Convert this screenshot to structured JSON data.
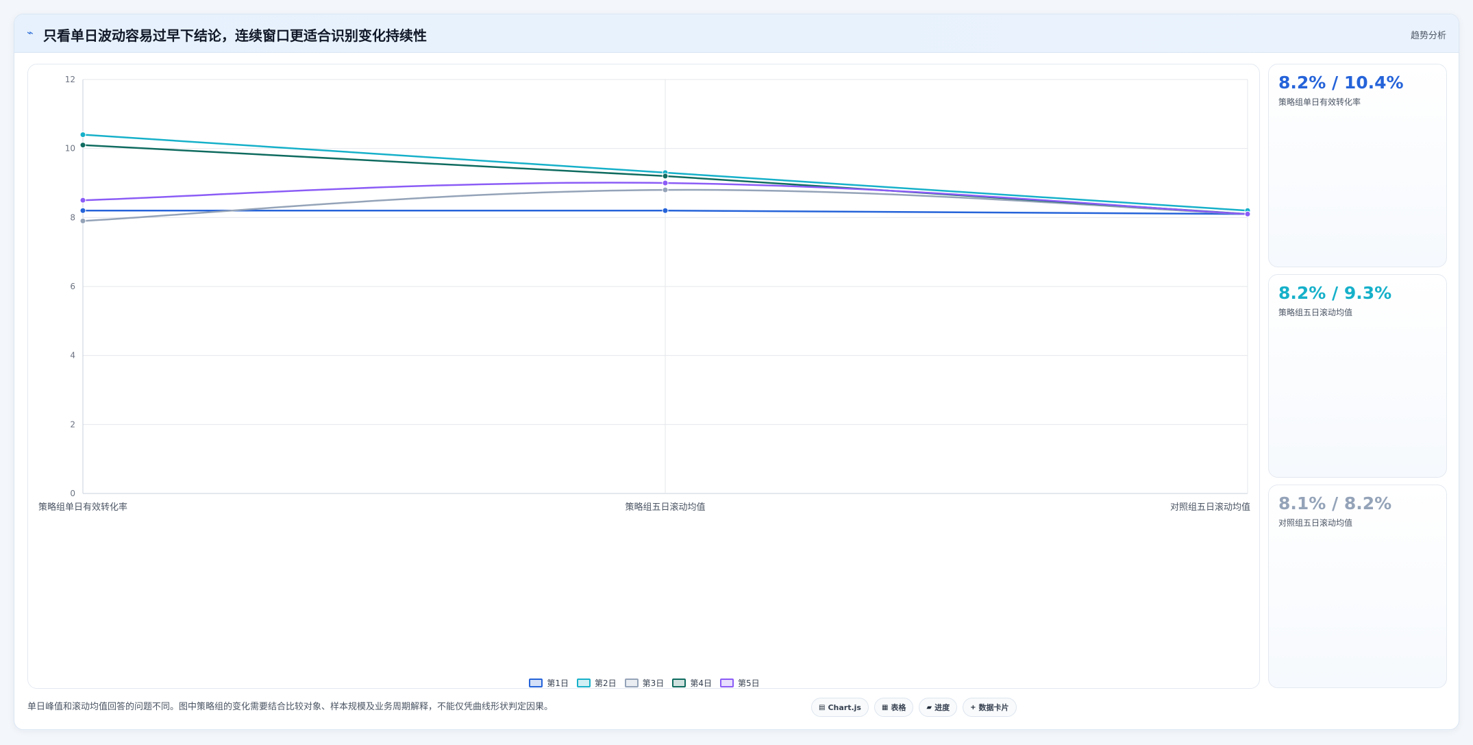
{
  "header": {
    "title": "只看单日波动容易过早下结论，连续窗口更适合识别变化持续性",
    "tag": "趋势分析"
  },
  "chart_data": {
    "type": "line",
    "categories": [
      "策略组单日有效转化率",
      "策略组五日滚动均值",
      "对照组五日滚动均值"
    ],
    "series": [
      {
        "name": "第1日",
        "values": [
          8.2,
          8.2,
          8.1
        ],
        "color": "#2563d9"
      },
      {
        "name": "第2日",
        "values": [
          10.4,
          9.3,
          8.2
        ],
        "color": "#16b0c9"
      },
      {
        "name": "第3日",
        "values": [
          7.9,
          8.8,
          8.1
        ],
        "color": "#94a3b8"
      },
      {
        "name": "第4日",
        "values": [
          10.1,
          9.2,
          8.1
        ],
        "color": "#0f6b5f"
      },
      {
        "name": "第5日",
        "values": [
          8.5,
          9.0,
          8.1
        ],
        "color": "#8b5cf6"
      }
    ],
    "yticks": [
      "0",
      "2",
      "4",
      "6",
      "8",
      "10",
      "12"
    ],
    "ylim": [
      0,
      12
    ],
    "grid": true,
    "legend_position": "bottom"
  },
  "kpis": [
    {
      "value": "8.2% / 10.4%",
      "label": "策略组单日有效转化率",
      "color": "#2563d9"
    },
    {
      "value": "8.2% / 9.3%",
      "label": "策略组五日滚动均值",
      "color": "#16b0c9"
    },
    {
      "value": "8.1% / 8.2%",
      "label": "对照组五日滚动均值",
      "color": "#94a3b8"
    }
  ],
  "footer": {
    "note": "单日峰值和滚动均值回答的问题不同。图中策略组的变化需要结合比较对象、样本规模及业务周期解释，不能仅凭曲线形状判定因果。",
    "tags": [
      {
        "icon": "▤",
        "label": "Chart.js",
        "icon_name": "chart-icon"
      },
      {
        "icon": "▦",
        "label": "表格",
        "icon_name": "table-icon"
      },
      {
        "icon": "▰",
        "label": "进度",
        "icon_name": "progress-icon"
      },
      {
        "icon": "+",
        "label": "数据卡片",
        "icon_name": "card-icon"
      }
    ]
  }
}
